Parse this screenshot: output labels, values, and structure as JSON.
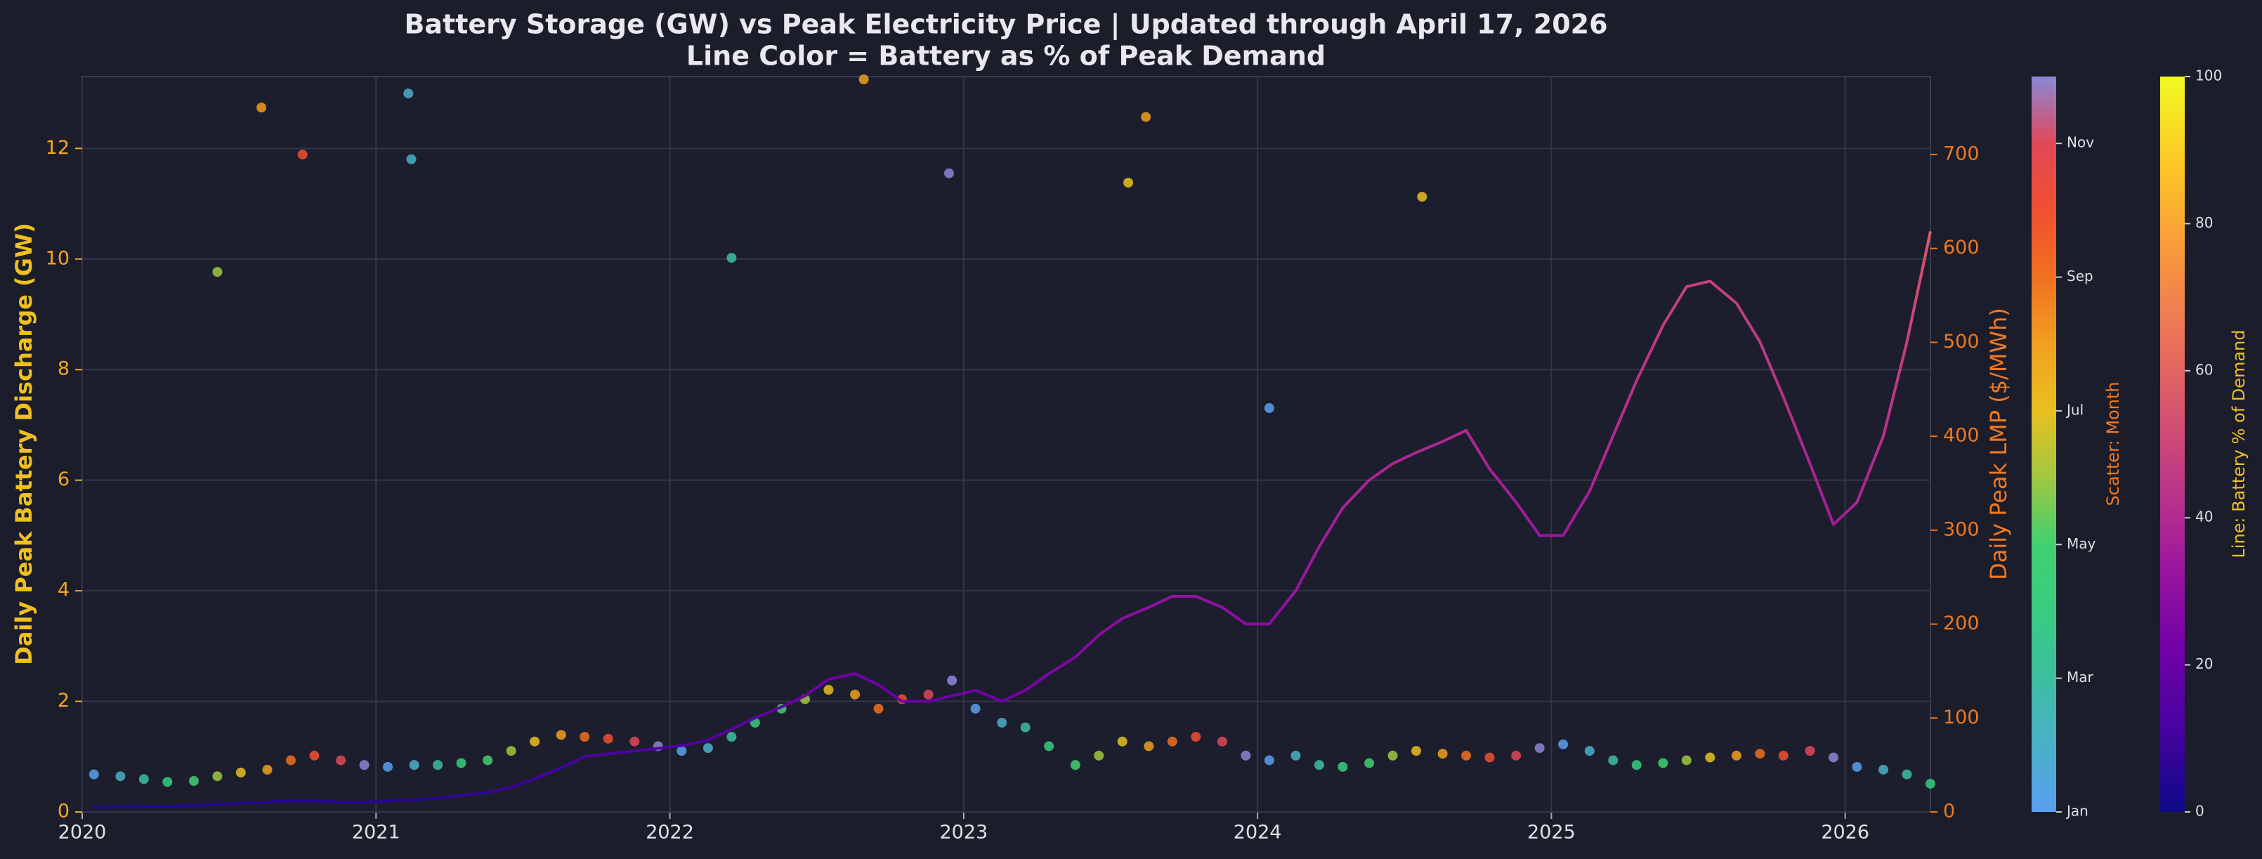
{
  "chart_data": {
    "type": "line",
    "title": "Battery Storage (GW) vs Peak Electricity Price  |  Updated through April 17, 2026",
    "subtitle": "Line Color = Battery as % of Peak Demand",
    "ylabel": "Daily Peak Battery Discharge (GW)",
    "y2label": "Daily Peak LMP ($/MWh)",
    "xlim": [
      2020,
      2026.29
    ],
    "xticks": [
      2020,
      2021,
      2022,
      2023,
      2024,
      2025,
      2026
    ],
    "ylim": [
      0,
      13.3
    ],
    "yticks": [
      0,
      2,
      4,
      6,
      8,
      10,
      12
    ],
    "y2lim": [
      0,
      783
    ],
    "y2ticks": [
      0,
      100,
      200,
      300,
      400,
      500,
      600,
      700
    ],
    "grid": true,
    "line": {
      "x": [
        2020.04,
        2020.13,
        2020.21,
        2020.29,
        2020.38,
        2020.46,
        2020.54,
        2020.63,
        2020.71,
        2020.79,
        2020.88,
        2020.96,
        2021.04,
        2021.13,
        2021.21,
        2021.29,
        2021.38,
        2021.46,
        2021.54,
        2021.63,
        2021.71,
        2021.79,
        2021.88,
        2021.96,
        2022.04,
        2022.13,
        2022.21,
        2022.29,
        2022.38,
        2022.46,
        2022.54,
        2022.63,
        2022.71,
        2022.79,
        2022.88,
        2022.96,
        2023.04,
        2023.13,
        2023.21,
        2023.29,
        2023.38,
        2023.46,
        2023.54,
        2023.63,
        2023.71,
        2023.79,
        2023.88,
        2023.96,
        2024.04,
        2024.13,
        2024.21,
        2024.29,
        2024.38,
        2024.46,
        2024.54,
        2024.63,
        2024.71,
        2024.79,
        2024.88,
        2024.96,
        2025.04,
        2025.13,
        2025.21,
        2025.29,
        2025.38,
        2025.46,
        2025.54,
        2025.63,
        2025.71,
        2025.79,
        2025.88,
        2025.96,
        2026.04,
        2026.13,
        2026.21,
        2026.29
      ],
      "values": [
        0.08,
        0.09,
        0.1,
        0.1,
        0.12,
        0.14,
        0.16,
        0.18,
        0.2,
        0.2,
        0.18,
        0.18,
        0.2,
        0.22,
        0.25,
        0.3,
        0.35,
        0.45,
        0.6,
        0.8,
        1.0,
        1.05,
        1.1,
        1.15,
        1.2,
        1.3,
        1.5,
        1.7,
        1.9,
        2.1,
        2.4,
        2.5,
        2.3,
        2.0,
        2.0,
        2.1,
        2.2,
        2.0,
        2.2,
        2.5,
        2.8,
        3.2,
        3.5,
        3.7,
        3.9,
        3.9,
        3.7,
        3.4,
        3.4,
        4.0,
        4.8,
        5.5,
        6.0,
        6.3,
        6.5,
        6.7,
        6.9,
        6.2,
        5.6,
        5.0,
        5.0,
        5.8,
        6.8,
        7.8,
        8.8,
        9.5,
        9.6,
        9.2,
        8.5,
        7.5,
        6.3,
        5.2,
        5.6,
        6.8,
        8.5,
        10.5
      ],
      "color_values": [
        3,
        3,
        3,
        3,
        4,
        4,
        4,
        5,
        5,
        5,
        5,
        5,
        5,
        6,
        6,
        7,
        8,
        9,
        10,
        11,
        12,
        12,
        13,
        13,
        14,
        15,
        16,
        17,
        18,
        20,
        22,
        22,
        21,
        20,
        20,
        21,
        22,
        21,
        23,
        25,
        26,
        28,
        29,
        30,
        31,
        31,
        30,
        29,
        29,
        32,
        35,
        37,
        38,
        38,
        39,
        39,
        40,
        37,
        35,
        33,
        34,
        37,
        40,
        43,
        46,
        48,
        48,
        47,
        45,
        42,
        38,
        35,
        38,
        42,
        48,
        56
      ],
      "colorbar": {
        "label": "Line: Battery % of Demand",
        "lim": [
          0,
          100
        ],
        "ticks": [
          0,
          20,
          40,
          60,
          80,
          100
        ],
        "colors": [
          "#0d0887",
          "#46039f",
          "#7201a8",
          "#9c179e",
          "#bd3786",
          "#d8576b",
          "#ed7953",
          "#fb9f3a",
          "#fdca26",
          "#f0f921"
        ]
      }
    },
    "scatter": {
      "axis": "y2",
      "x": [
        2020.04,
        2020.13,
        2020.21,
        2020.29,
        2020.38,
        2020.46,
        2020.54,
        2020.63,
        2020.71,
        2020.79,
        2020.88,
        2020.96,
        2021.04,
        2021.13,
        2021.21,
        2021.29,
        2021.38,
        2021.46,
        2021.54,
        2021.63,
        2021.71,
        2021.79,
        2021.88,
        2021.96,
        2022.04,
        2022.13,
        2022.21,
        2022.29,
        2022.38,
        2022.46,
        2022.54,
        2022.63,
        2022.71,
        2022.79,
        2022.88,
        2022.96,
        2023.04,
        2023.13,
        2023.21,
        2023.29,
        2023.38,
        2023.46,
        2023.54,
        2023.63,
        2023.71,
        2023.79,
        2023.88,
        2023.96,
        2024.04,
        2024.13,
        2024.21,
        2024.29,
        2024.38,
        2024.46,
        2024.54,
        2024.63,
        2024.71,
        2024.79,
        2024.88,
        2024.96,
        2025.04,
        2025.13,
        2025.21,
        2025.29,
        2025.38,
        2025.46,
        2025.54,
        2025.63,
        2025.71,
        2025.79,
        2025.88,
        2025.96,
        2026.04,
        2026.13,
        2026.21,
        2026.29,
        2020.61,
        2020.75,
        2021.11,
        2021.12,
        2022.66,
        2022.95,
        2023.56,
        2023.62,
        2024.56,
        2024.04,
        2022.21,
        2020.46
      ],
      "values": [
        40,
        38,
        35,
        32,
        33,
        38,
        42,
        45,
        55,
        60,
        55,
        50,
        48,
        50,
        50,
        52,
        55,
        65,
        75,
        82,
        80,
        78,
        75,
        70,
        65,
        68,
        80,
        95,
        110,
        120,
        130,
        125,
        110,
        120,
        125,
        140,
        110,
        95,
        90,
        70,
        50,
        60,
        75,
        70,
        75,
        80,
        75,
        60,
        55,
        60,
        50,
        48,
        52,
        60,
        65,
        62,
        60,
        58,
        60,
        68,
        72,
        65,
        55,
        50,
        52,
        55,
        58,
        60,
        62,
        60,
        65,
        58,
        48,
        45,
        40,
        30,
        750,
        700,
        765,
        695,
        780,
        680,
        670,
        740,
        655,
        430,
        590,
        575
      ],
      "colorbar": {
        "label": "Scatter: Month",
        "lim": [
          1,
          12
        ],
        "ticks": [
          {
            "value": 1,
            "label": "Jan"
          },
          {
            "value": 3,
            "label": "Mar"
          },
          {
            "value": 5,
            "label": "May"
          },
          {
            "value": 7,
            "label": "Jul"
          },
          {
            "value": 9,
            "label": "Sep"
          },
          {
            "value": 11,
            "label": "Nov"
          }
        ],
        "colors": [
          "#5aa0f0",
          "#4ab0c8",
          "#3cbfa0",
          "#38cc80",
          "#40d070",
          "#a0c840",
          "#e8c020",
          "#f0a020",
          "#f07020",
          "#f05030",
          "#e04858",
          "#8a88d8"
        ]
      }
    }
  }
}
